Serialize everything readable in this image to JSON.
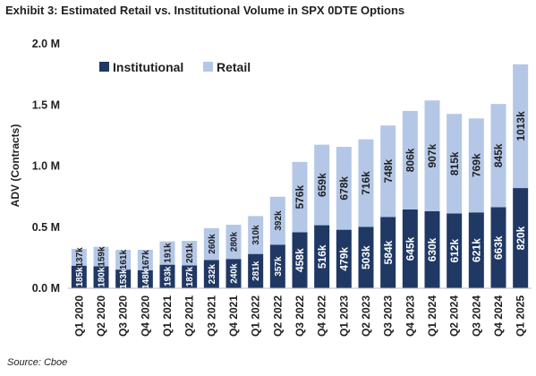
{
  "header": {
    "title": "Exhibit 3: Estimated Retail vs. Institutional Volume in SPX 0DTE Options"
  },
  "footer": {
    "source": "Source: Cboe"
  },
  "colors": {
    "institutional": "#203864",
    "retail": "#b4c7e7",
    "text": "#1f1f1f"
  },
  "chart_data": {
    "type": "bar",
    "stacked": true,
    "title": "Exhibit 3: Estimated Retail vs. Institutional Volume in SPX 0DTE Options",
    "ylabel": "ADV (Contracts)",
    "xlabel": "",
    "ylim": [
      0,
      2000000
    ],
    "yticks": [
      0,
      500000,
      1000000,
      1500000,
      2000000
    ],
    "ytick_labels": [
      "0.0 M",
      "0.5 M",
      "1.0 M",
      "1.5 M",
      "2.0 M"
    ],
    "grid": false,
    "legend_position": "top-left",
    "categories": [
      "Q1 2020",
      "Q2 2020",
      "Q3 2020",
      "Q4 2020",
      "Q1 2021",
      "Q2 2021",
      "Q3 2021",
      "Q4 2021",
      "Q1 2022",
      "Q2 2022",
      "Q3 2022",
      "Q4 2022",
      "Q1 2023",
      "Q2 2023",
      "Q3 2023",
      "Q4 2023",
      "Q1 2024",
      "Q2 2024",
      "Q3 2024",
      "Q4 2024",
      "Q1 2025"
    ],
    "series": [
      {
        "name": "Institutional",
        "values": [
          185000,
          180000,
          153000,
          148000,
          193000,
          187000,
          232000,
          240000,
          281000,
          357000,
          458000,
          516000,
          479000,
          503000,
          584000,
          645000,
          630000,
          612000,
          621000,
          663000,
          820000
        ],
        "labels": [
          "185k",
          "180k",
          "153k",
          "148k",
          "193k",
          "187k",
          "232k",
          "240k",
          "281k",
          "357k",
          "458k",
          "516k",
          "479k",
          "503k",
          "584k",
          "645k",
          "630k",
          "612k",
          "621k",
          "663k",
          "820k"
        ]
      },
      {
        "name": "Retail",
        "values": [
          137000,
          159000,
          161000,
          167000,
          191000,
          201000,
          260000,
          280000,
          310000,
          392000,
          576000,
          659000,
          678000,
          716000,
          748000,
          806000,
          907000,
          815000,
          769000,
          845000,
          1013000
        ],
        "labels": [
          "137k",
          "159k",
          "161k",
          "167k",
          "191k",
          "201k",
          "260k",
          "280k",
          "310k",
          "392k",
          "576k",
          "659k",
          "678k",
          "716k",
          "748k",
          "806k",
          "907k",
          "815k",
          "769k",
          "845k",
          "1013k"
        ]
      }
    ]
  }
}
